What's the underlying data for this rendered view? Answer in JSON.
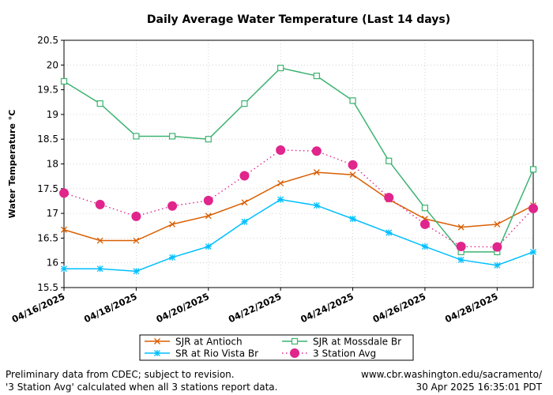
{
  "chart_data": {
    "type": "line",
    "title": "Daily Average Water Temperature (Last 14 days)",
    "xlabel": "",
    "ylabel": "Water Temperature °C",
    "ylim": [
      15.5,
      20.5
    ],
    "yticks": [
      15.5,
      16,
      16.5,
      17,
      17.5,
      18,
      18.5,
      19,
      19.5,
      20,
      20.5
    ],
    "ytick_labels": [
      "15.5",
      "16",
      "16.5",
      "17",
      "17.5",
      "18",
      "18.5",
      "19",
      "19.5",
      "20",
      "20.5"
    ],
    "x": [
      "04/16/2025",
      "04/17/2025",
      "04/18/2025",
      "04/19/2025",
      "04/20/2025",
      "04/21/2025",
      "04/22/2025",
      "04/23/2025",
      "04/24/2025",
      "04/25/2025",
      "04/26/2025",
      "04/27/2025",
      "04/28/2025",
      "04/29/2025"
    ],
    "xticks": [
      "04/16/2025",
      "04/18/2025",
      "04/20/2025",
      "04/22/2025",
      "04/24/2025",
      "04/26/2025",
      "04/28/2025"
    ],
    "grid": true,
    "legend_position": "bottom-center",
    "series": [
      {
        "name": "SJR at Antioch",
        "color": "#d95f02",
        "marker": "x",
        "linestyle": "solid",
        "values": [
          16.67,
          16.45,
          16.45,
          16.78,
          16.95,
          17.22,
          17.61,
          17.83,
          17.78,
          17.28,
          16.89,
          16.72,
          16.78,
          17.16
        ]
      },
      {
        "name": "SR at Rio Vista Br",
        "color": "#00bfff",
        "marker": "asterisk",
        "linestyle": "solid",
        "values": [
          15.88,
          15.88,
          15.83,
          16.11,
          16.33,
          16.83,
          17.28,
          17.16,
          16.89,
          16.61,
          16.33,
          16.06,
          15.95,
          16.22
        ]
      },
      {
        "name": "SJR at Mossdale Br",
        "color": "#3cb371",
        "marker": "square",
        "linestyle": "solid",
        "values": [
          19.67,
          19.22,
          18.56,
          18.56,
          18.5,
          19.22,
          19.94,
          19.78,
          19.28,
          18.06,
          17.11,
          16.22,
          16.22,
          17.89
        ]
      },
      {
        "name": "3 Station Avg",
        "color": "#e0258c",
        "marker": "circle",
        "linestyle": "dotted",
        "values": [
          17.41,
          17.18,
          16.94,
          17.15,
          17.26,
          17.76,
          18.28,
          18.26,
          17.98,
          17.32,
          16.78,
          16.33,
          16.32,
          17.1
        ]
      }
    ]
  },
  "footer": {
    "left_line1": "Preliminary data from CDEC; subject to revision.",
    "left_line2": "'3 Station Avg' calculated when all 3 stations report data.",
    "right_line1": "www.cbr.washington.edu/sacramento/",
    "right_line2": "30 Apr 2025 16:35:01 PDT"
  }
}
